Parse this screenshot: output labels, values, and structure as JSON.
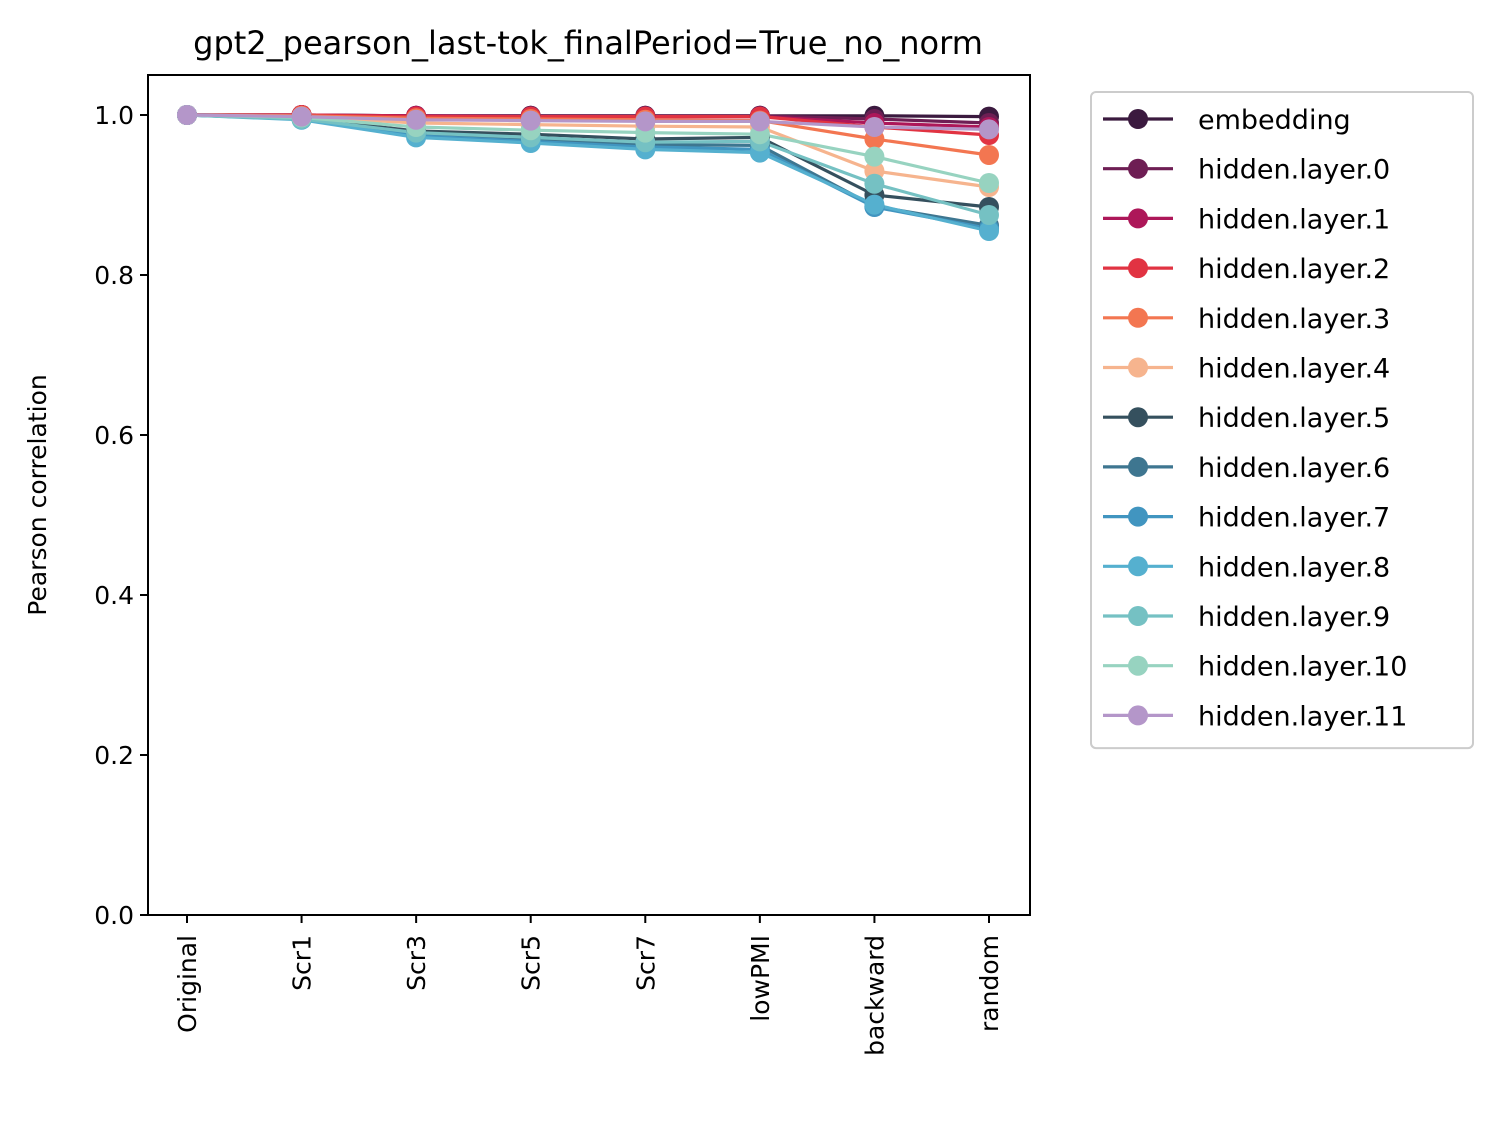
{
  "chart_data": {
    "type": "line",
    "title": "gpt2_pearson_last-tok_finalPeriod=True_no_norm",
    "xlabel": "",
    "ylabel": "Pearson correlation",
    "ylim": [
      0,
      1.05
    ],
    "yticks": [
      "0.0",
      "0.2",
      "0.4",
      "0.6",
      "0.8",
      "1.0"
    ],
    "categories": [
      "Original",
      "Scr1",
      "Scr3",
      "Scr5",
      "Scr7",
      "lowPMI",
      "backward",
      "random"
    ],
    "grid": false,
    "legend_position": "outside-right",
    "series": [
      {
        "name": "embedding",
        "color": "#3b1a3f",
        "values": [
          1.0,
          1.0,
          0.999,
          0.999,
          0.999,
          0.999,
          0.999,
          0.998
        ]
      },
      {
        "name": "hidden.layer.0",
        "color": "#6e1e54",
        "values": [
          1.0,
          1.0,
          0.999,
          0.999,
          0.999,
          0.999,
          0.995,
          0.99
        ]
      },
      {
        "name": "hidden.layer.1",
        "color": "#ad1759",
        "values": [
          1.0,
          1.0,
          0.999,
          0.998,
          0.998,
          0.998,
          0.99,
          0.985
        ]
      },
      {
        "name": "hidden.layer.2",
        "color": "#e13342",
        "values": [
          1.0,
          1.0,
          0.998,
          0.998,
          0.998,
          0.998,
          0.985,
          0.975
        ]
      },
      {
        "name": "hidden.layer.3",
        "color": "#f37651",
        "values": [
          1.0,
          0.999,
          0.996,
          0.995,
          0.994,
          0.993,
          0.97,
          0.95
        ]
      },
      {
        "name": "hidden.layer.4",
        "color": "#f6b48e",
        "values": [
          1.0,
          0.998,
          0.99,
          0.988,
          0.986,
          0.985,
          0.93,
          0.91
        ]
      },
      {
        "name": "hidden.layer.5",
        "color": "#35505e",
        "values": [
          1.0,
          0.996,
          0.98,
          0.976,
          0.97,
          0.972,
          0.9,
          0.885
        ]
      },
      {
        "name": "hidden.layer.6",
        "color": "#3e7690",
        "values": [
          1.0,
          0.995,
          0.977,
          0.97,
          0.963,
          0.962,
          0.886,
          0.862
        ]
      },
      {
        "name": "hidden.layer.7",
        "color": "#4195c0",
        "values": [
          1.0,
          0.995,
          0.974,
          0.967,
          0.96,
          0.957,
          0.885,
          0.858
        ]
      },
      {
        "name": "hidden.layer.8",
        "color": "#55b0cf",
        "values": [
          1.0,
          0.994,
          0.972,
          0.965,
          0.957,
          0.953,
          0.888,
          0.855
        ]
      },
      {
        "name": "hidden.layer.9",
        "color": "#75c1c3",
        "values": [
          1.0,
          0.995,
          0.978,
          0.972,
          0.966,
          0.967,
          0.914,
          0.875
        ]
      },
      {
        "name": "hidden.layer.10",
        "color": "#97d3c0",
        "values": [
          1.0,
          0.997,
          0.985,
          0.981,
          0.978,
          0.976,
          0.948,
          0.915
        ]
      },
      {
        "name": "hidden.layer.11",
        "color": "#b496c9",
        "values": [
          1.0,
          0.998,
          0.994,
          0.993,
          0.992,
          0.992,
          0.985,
          0.982
        ]
      }
    ]
  }
}
